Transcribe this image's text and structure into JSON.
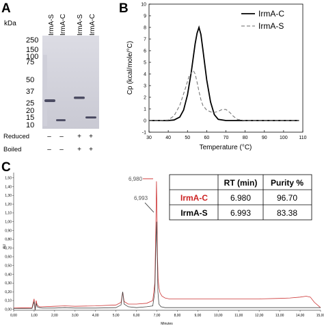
{
  "panels": {
    "a_letter": "A",
    "b_letter": "B",
    "c_letter": "C"
  },
  "gel": {
    "kda_label": "kDa",
    "lanes": [
      "IrmA-S",
      "IrmA-C",
      "IrmA-S",
      "IrmA-C"
    ],
    "markers": [
      "250",
      "150",
      "100",
      "75",
      "50",
      "37",
      "25",
      "20",
      "15",
      "10"
    ],
    "conditions": [
      {
        "label": "Reduced",
        "signs": [
          "–",
          "–",
          "+",
          "+"
        ]
      },
      {
        "label": "Boiled",
        "signs": [
          "–",
          "–",
          "+",
          "+"
        ]
      }
    ],
    "band_kda": [
      31,
      14,
      32,
      15
    ]
  },
  "chart_data": [
    {
      "type": "line",
      "xlabel": "Temperature (°C)",
      "ylabel": "Cp (kcal/mole/°C)",
      "xlim": [
        30,
        110
      ],
      "ylim": [
        -1,
        10
      ],
      "x_ticks": [
        30,
        40,
        50,
        60,
        70,
        80,
        90,
        100,
        110
      ],
      "y_ticks": [
        -1,
        0,
        1,
        2,
        3,
        4,
        5,
        6,
        7,
        8,
        9,
        10
      ],
      "legend_position": "top-right",
      "series": [
        {
          "name": "IrmA-C",
          "color": "#000000",
          "style": "solid",
          "x": [
            30,
            35,
            40,
            43,
            46,
            48,
            50,
            52,
            54,
            55,
            56,
            57,
            58,
            60,
            62,
            64,
            66,
            70,
            75,
            80,
            90,
            100,
            108
          ],
          "y": [
            0,
            0,
            0,
            0.05,
            0.3,
            0.9,
            2.2,
            4.2,
            6.6,
            7.5,
            8.0,
            7.4,
            6.1,
            3.5,
            1.6,
            0.5,
            0.1,
            0,
            0,
            0,
            0,
            0,
            0
          ]
        },
        {
          "name": "IrmA-S",
          "color": "#777777",
          "style": "dashed",
          "x": [
            30,
            35,
            40,
            43,
            46,
            49,
            51,
            53,
            54,
            55,
            56,
            57,
            58,
            60,
            62,
            64,
            66,
            68,
            70,
            72,
            74,
            76,
            80,
            90,
            100,
            108
          ],
          "y": [
            0,
            0,
            0.05,
            0.4,
            1.3,
            2.8,
            3.9,
            4.3,
            4.0,
            3.3,
            2.5,
            1.8,
            1.3,
            0.9,
            0.75,
            0.7,
            0.78,
            0.95,
            0.95,
            0.7,
            0.35,
            0.1,
            0,
            0,
            0,
            0
          ]
        }
      ]
    },
    {
      "type": "line",
      "xlabel": "Minutes",
      "ylabel": "AU",
      "xlim": [
        0,
        15
      ],
      "ylim": [
        -0.01,
        1.56
      ],
      "x_ticks": [
        "0,00",
        "1,00",
        "2,00",
        "3,00",
        "4,00",
        "5,00",
        "6,00",
        "7,00",
        "8,00",
        "9,00",
        "10,00",
        "11,00",
        "12,00",
        "13,00",
        "14,00",
        "15,00"
      ],
      "x_tick_values": [
        0,
        1,
        2,
        3,
        4,
        5,
        6,
        7,
        8,
        9,
        10,
        11,
        12,
        13,
        14,
        15
      ],
      "y_ticks": [
        "0,00",
        "0,10",
        "0,20",
        "0,30",
        "0,40",
        "0,50",
        "0,60",
        "0,70",
        "0,80",
        "0,90",
        "1,00",
        "1,10",
        "1,20",
        "1,30",
        "1,40",
        "1,50"
      ],
      "y_tick_values": [
        0,
        0.1,
        0.2,
        0.3,
        0.4,
        0.5,
        0.6,
        0.7,
        0.8,
        0.9,
        1.0,
        1.1,
        1.2,
        1.3,
        1.4,
        1.5
      ],
      "annotations": [
        {
          "text": "6,980",
          "x": 6.98,
          "y": 1.47,
          "color": "#cc2222"
        },
        {
          "text": "6,993",
          "x": 6.993,
          "y": 1.01,
          "color": "#333333"
        }
      ],
      "series": [
        {
          "name": "IrmA-C",
          "color": "#cc3333",
          "x": [
            0,
            0.9,
            1.0,
            1.05,
            1.1,
            1.15,
            1.25,
            1.4,
            2.0,
            2.5,
            3.0,
            4.0,
            5.0,
            5.25,
            5.33,
            5.4,
            5.6,
            6.0,
            6.5,
            6.8,
            6.9,
            6.95,
            6.98,
            7.0,
            7.03,
            7.06,
            7.1,
            7.15,
            7.25,
            7.4,
            7.6,
            8.0,
            9.0,
            10.0,
            11.0,
            12.0,
            13.0,
            13.5,
            14.0,
            14.3,
            14.5,
            14.7,
            15.0
          ],
          "y": [
            0.015,
            0.02,
            0.12,
            -0.01,
            0.1,
            0.05,
            0.03,
            0.03,
            0.035,
            0.04,
            0.035,
            0.04,
            0.05,
            0.08,
            0.2,
            0.09,
            0.06,
            0.06,
            0.07,
            0.1,
            0.3,
            0.95,
            1.46,
            1.2,
            0.6,
            0.35,
            0.25,
            0.19,
            0.15,
            0.13,
            0.12,
            0.12,
            0.12,
            0.12,
            0.12,
            0.12,
            0.125,
            0.13,
            0.14,
            0.15,
            0.14,
            0.08,
            0.02
          ]
        },
        {
          "name": "IrmA-S",
          "color": "#444444",
          "x": [
            0,
            0.9,
            1.0,
            1.05,
            1.1,
            1.15,
            1.25,
            1.4,
            2.0,
            2.5,
            3.0,
            4.0,
            5.0,
            5.25,
            5.33,
            5.4,
            5.6,
            6.0,
            6.5,
            6.8,
            6.9,
            6.95,
            6.993,
            7.02,
            7.05,
            7.1,
            7.2,
            7.4,
            8.0,
            10.0,
            12.0,
            14.0,
            15.0
          ],
          "y": [
            0.01,
            0.01,
            0.09,
            -0.01,
            0.07,
            0.03,
            0.02,
            0.015,
            0.015,
            0.02,
            0.015,
            0.015,
            0.02,
            0.05,
            0.2,
            0.06,
            0.03,
            0.02,
            0.03,
            0.04,
            0.2,
            0.7,
            1.0,
            0.6,
            0.2,
            0.06,
            0.03,
            0.02,
            0.02,
            0.02,
            0.02,
            0.02,
            0.02
          ]
        }
      ],
      "table": {
        "headers": [
          "",
          "RT (min)",
          "Purity %"
        ],
        "rows": [
          {
            "name": "IrmA-C",
            "rt": "6.980",
            "purity": "96.70",
            "color": "#cc2222"
          },
          {
            "name": "IrmA-S",
            "rt": "6.993",
            "purity": "83.38",
            "color": "#000000"
          }
        ]
      }
    }
  ]
}
